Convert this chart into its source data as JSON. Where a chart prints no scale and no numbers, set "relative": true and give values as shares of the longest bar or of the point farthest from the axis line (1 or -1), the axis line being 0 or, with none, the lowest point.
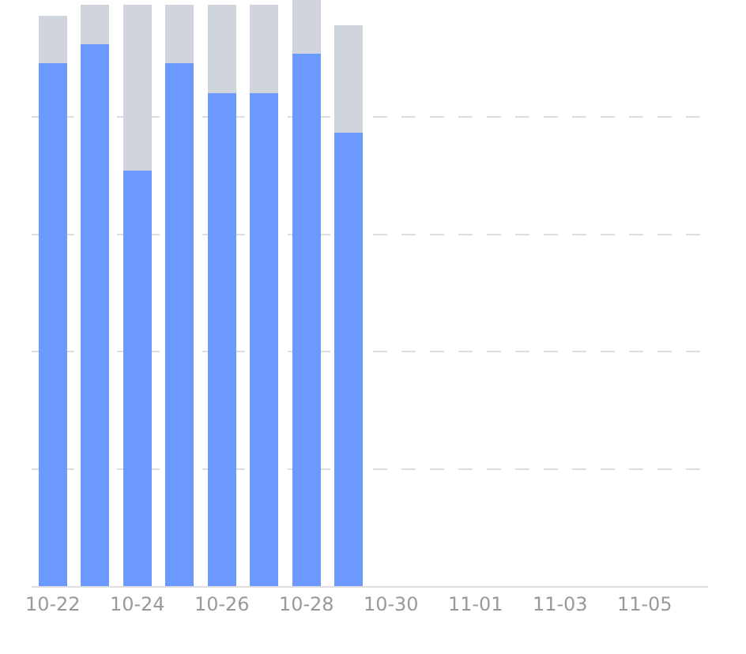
{
  "chart_data": {
    "type": "bar",
    "stacked": true,
    "relative": true,
    "categories": [
      "10-22",
      null,
      "10-24",
      null,
      "10-26",
      null,
      "10-28",
      null,
      "10-30",
      null,
      "11-01",
      null,
      "11-03",
      null,
      "11-05",
      null
    ],
    "series": [
      {
        "color": "#6b99ff",
        "values": [
          0.892,
          0.925,
          0.709,
          0.892,
          0.841,
          0.841,
          0.908,
          0.774,
          null,
          null,
          null,
          null,
          null,
          null,
          null,
          null
        ]
      },
      {
        "color": "#d0d4dc",
        "values": [
          0.081,
          0.067,
          0.283,
          0.1,
          0.151,
          0.151,
          0.092,
          0.183,
          null,
          null,
          null,
          null,
          null,
          null,
          null,
          null
        ]
      }
    ],
    "grid": "y"
  }
}
